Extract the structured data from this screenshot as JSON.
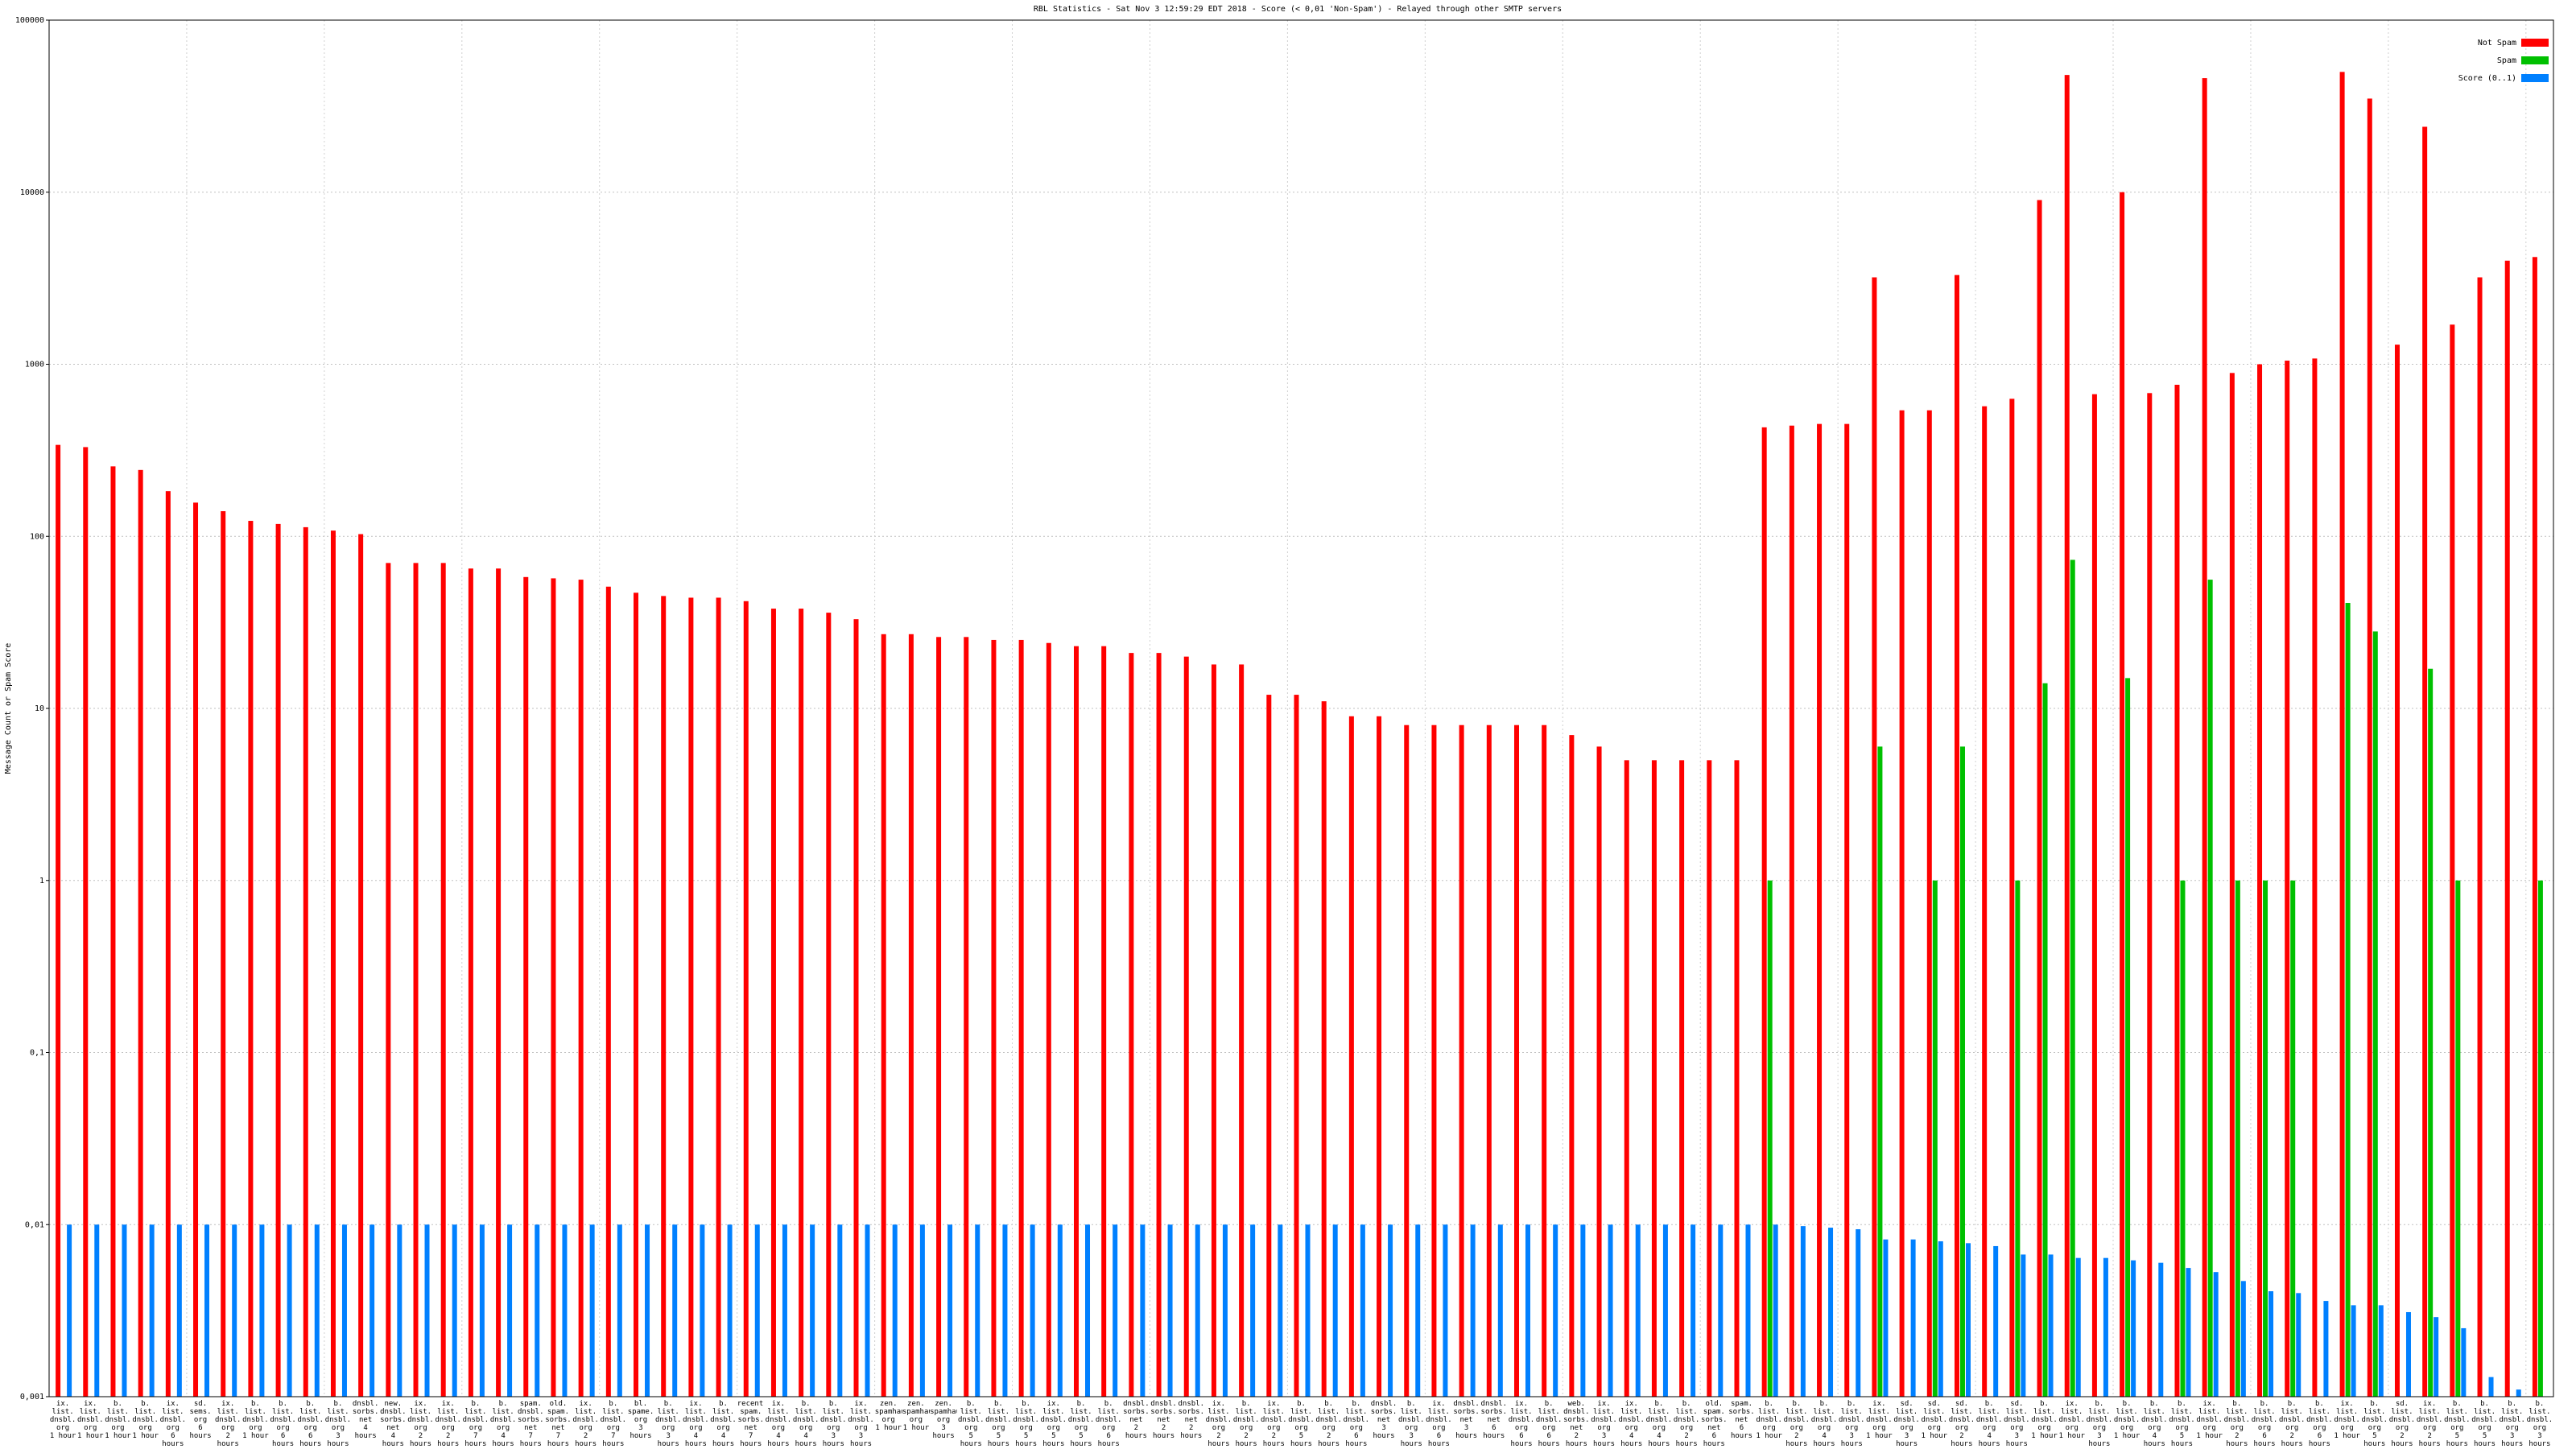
{
  "chart_data": {
    "type": "bar",
    "log_scale": true,
    "grid": true,
    "legend": "top-right",
    "title": "RBL Statistics - Sat Nov  3 12:59:29 EDT 2018 - Score (< 0,01 'Non-Spam') - Relayed through other SMTP servers",
    "y_label": "Message Count or Spam Score",
    "ylim": [
      0.001,
      100000
    ],
    "yticks": [
      {
        "value": 0.001,
        "label": "0,001"
      },
      {
        "value": 0.01,
        "label": "0,01"
      },
      {
        "value": 0.1,
        "label": "0,1"
      },
      1,
      10,
      100,
      1000,
      10000,
      100000
    ],
    "categories": [
      "ix.\nlist.\ndnsbl.\norg\n1 hour",
      "ix.\nlist.\ndnsbl.\norg\n1 hour",
      "b.\nlist.\ndnsbl.\norg\n1 hour",
      "b.\nlist.\ndnsbl.\norg\n1 hour",
      "ix.\nlist.\ndnsbl.\norg\n6 hours",
      "sd.\nsems.\norg\n6 hours",
      "ix.\nlist.\ndnsbl.\norg\n2 hours",
      "b.\nlist.\ndnsbl.\norg\n1 hour",
      "b.\nlist.\ndnsbl.\norg\n6 hours",
      "b.\nlist.\ndnsbl.\norg\n6 hours",
      "b.\nlist.\ndnsbl.\norg\n3 hours",
      "dnsbl.\nsorbs.\nnet\n4 hours",
      "new.\ndnsbl.\nsorbs.\nnet\n4 hours",
      "ix.\nlist.\ndnsbl.\norg\n2 hours",
      "ix.\nlist.\ndnsbl.\norg\n2 hours",
      "b.\nlist.\ndnsbl.\norg\n7 hours",
      "b.\nlist.\ndnsbl.\norg\n4 hours",
      "spam.\ndnsbl.\nsorbs.\nnet\n7 hours",
      "old.\nspam.\nsorbs.\nnet\n7 hours",
      "ix.\nlist.\ndnsbl.\norg\n2 hours",
      "b.\nlist.\ndnsbl.\norg\n7 hours",
      "bl.\nspame.\norg\n3 hours",
      "b.\nlist.\ndnsbl.\norg\n3 hours",
      "ix.\nlist.\ndnsbl.\norg\n4 hours",
      "b.\nlist.\ndnsbl.\norg\n4 hours",
      "recent.\nspam.\nsorbs.\nnet\n7 hours",
      "ix.\nlist.\ndnsbl.\norg\n4 hours",
      "b.\nlist.\ndnsbl.\norg\n4 hours",
      "b.\nlist.\ndnsbl.\norg\n3 hours",
      "ix.\nlist.\ndnsbl.\norg\n3 hours",
      "zen.\nspamhaus.\norg\n1 hour",
      "zen.\nspamhaus.\norg\n1 hour",
      "zen.\nspamhaus.\norg\n3 hours",
      "b.\nlist.\ndnsbl.\norg\n5 hours",
      "b.\nlist.\ndnsbl.\norg\n5 hours",
      "b.\nlist.\ndnsbl.\norg\n5 hours",
      "ix.\nlist.\ndnsbl.\norg\n5 hours",
      "b.\nlist.\ndnsbl.\norg\n5 hours",
      "b.\nlist.\ndnsbl.\norg\n6 hours",
      "dnsbl.\nsorbs.\nnet\n2 hours",
      "dnsbl.\nsorbs.\nnet\n2 hours",
      "dnsbl.\nsorbs.\nnet\n2 hours",
      "ix.\nlist.\ndnsbl.\norg\n2 hours",
      "b.\nlist.\ndnsbl.\norg\n2 hours",
      "ix.\nlist.\ndnsbl.\norg\n2 hours",
      "b.\nlist.\ndnsbl.\norg\n5 hours",
      "b.\nlist.\ndnsbl.\norg\n2 hours",
      "b.\nlist.\ndnsbl.\norg\n6 hours",
      "dnsbl.\nsorbs.\nnet\n3 hours",
      "b.\nlist.\ndnsbl.\norg\n3 hours",
      "ix.\nlist.\ndnsbl.\norg\n6 hours",
      "dnsbl.\nsorbs.\nnet\n3 hours",
      "dnsbl.\nsorbs.\nnet\n6 hours",
      "ix.\nlist.\ndnsbl.\norg\n6 hours",
      "b.\nlist.\ndnsbl.\norg\n6 hours",
      "web.\ndnsbl.\nsorbs.\nnet\n2 hours",
      "ix.\nlist.\ndnsbl.\norg\n3 hours",
      "ix.\nlist.\ndnsbl.\norg\n4 hours",
      "b.\nlist.\ndnsbl.\norg\n4 hours",
      "b.\nlist.\ndnsbl.\norg\n2 hours",
      "old.\nspam.\nsorbs.\nnet\n6 hours",
      "spam.\nsorbs.\nnet\n6 hours",
      "b.\nlist.\ndnsbl.\norg\n1 hour",
      "b.\nlist.\ndnsbl.\norg\n2 hours",
      "b.\nlist.\ndnsbl.\norg\n4 hours",
      "b.\nlist.\ndnsbl.\norg\n3 hours",
      "ix.\nlist.\ndnsbl.\norg\n1 hour",
      "sd.\nlist.\ndnsbl.\norg\n3 hours",
      "sd.\nlist.\ndnsbl.\norg\n1 hour",
      "sd.\nlist.\ndnsbl.\norg\n2 hours",
      "b.\nlist.\ndnsbl.\norg\n4 hours",
      "sd.\nlist.\ndnsbl.\norg\n3 hours",
      "b.\nlist.\ndnsbl.\norg\n1 hour",
      "ix.\nlist.\ndnsbl.\norg\n1 hour",
      "b.\nlist.\ndnsbl.\norg\n3 hours",
      "b.\nlist.\ndnsbl.\norg\n1 hour",
      "b.\nlist.\ndnsbl.\norg\n4 hours",
      "b.\nlist.\ndnsbl.\norg\n5 hours",
      "ix.\nlist.\ndnsbl.\norg\n1 hour",
      "b.\nlist.\ndnsbl.\norg\n2 hours",
      "b.\nlist.\ndnsbl.\norg\n6 hours",
      "b.\nlist.\ndnsbl.\norg\n2 hours",
      "b.\nlist.\ndnsbl.\norg\n6 hours",
      "ix.\nlist.\ndnsbl.\norg\n1 hour",
      "b.\nlist.\ndnsbl.\norg\n5 hours",
      "sd.\nlist.\ndnsbl.\norg\n2 hours",
      "ix.\nlist.\ndnsbl.\norg\n2 hours",
      "b.\nlist.\ndnsbl.\norg\n5 hours",
      "b.\nlist.\ndnsbl.\norg\n5 hours",
      "b.\nlist.\ndnsbl.\norg\n3 hours",
      "b.\nlist.\ndnsbl.\norg\n3 hours"
    ],
    "series": [
      {
        "name": "Not Spam",
        "color": "#ff0000",
        "values": [
          340,
          330,
          255,
          243,
          183,
          157,
          140,
          123,
          118,
          113,
          108,
          103,
          70,
          70,
          70,
          65,
          65,
          58,
          57,
          56,
          51,
          47,
          45,
          44,
          44,
          42,
          38,
          38,
          36,
          33,
          27,
          27,
          26,
          26,
          25,
          25,
          24,
          23,
          23,
          21,
          21,
          20,
          18,
          18,
          12,
          12,
          11,
          9,
          9,
          8,
          8,
          8,
          8,
          8,
          8,
          7,
          6,
          5,
          5,
          5,
          5,
          5,
          430,
          440,
          450,
          450,
          3200,
          540,
          540,
          3300,
          570,
          630,
          9000,
          48000,
          670,
          10000,
          680,
          760,
          46000,
          890,
          1000,
          1050,
          1080,
          50000,
          35000,
          1300,
          24000,
          1700,
          3200,
          4000,
          4200
        ]
      },
      {
        "name": "Spam",
        "color": "#00c000",
        "values": [
          null,
          null,
          null,
          null,
          null,
          null,
          null,
          null,
          null,
          null,
          null,
          null,
          null,
          null,
          null,
          null,
          null,
          null,
          null,
          null,
          null,
          null,
          null,
          null,
          null,
          null,
          null,
          null,
          null,
          null,
          null,
          null,
          null,
          null,
          null,
          null,
          null,
          null,
          null,
          null,
          null,
          null,
          null,
          null,
          null,
          null,
          null,
          null,
          null,
          null,
          null,
          null,
          null,
          null,
          null,
          null,
          null,
          null,
          null,
          null,
          null,
          null,
          1,
          null,
          null,
          null,
          6,
          null,
          1,
          6,
          null,
          1,
          14,
          73,
          null,
          15,
          null,
          1,
          56,
          1,
          1,
          1,
          null,
          41,
          28,
          null,
          17,
          1,
          null,
          null,
          1
        ]
      },
      {
        "name": "Score (0..1)",
        "color": "#0080ff",
        "values": [
          0.01,
          0.01,
          0.01,
          0.01,
          0.01,
          0.01,
          0.01,
          0.01,
          0.01,
          0.01,
          0.01,
          0.01,
          0.01,
          0.01,
          0.01,
          0.01,
          0.01,
          0.01,
          0.01,
          0.01,
          0.01,
          0.01,
          0.01,
          0.01,
          0.01,
          0.01,
          0.01,
          0.01,
          0.01,
          0.01,
          0.01,
          0.01,
          0.01,
          0.01,
          0.01,
          0.01,
          0.01,
          0.01,
          0.01,
          0.01,
          0.01,
          0.01,
          0.01,
          0.01,
          0.01,
          0.01,
          0.01,
          0.01,
          0.01,
          0.01,
          0.01,
          0.01,
          0.01,
          0.01,
          0.01,
          0.01,
          0.01,
          0.01,
          0.01,
          0.01,
          0.01,
          0.01,
          0.01,
          0.0098,
          0.0096,
          0.0094,
          0.0082,
          0.0082,
          0.008,
          0.0078,
          0.0075,
          0.0067,
          0.0067,
          0.0064,
          0.0064,
          0.0062,
          0.006,
          0.0056,
          0.0053,
          0.0047,
          0.0041,
          0.004,
          0.0036,
          0.0034,
          0.0034,
          0.0031,
          0.0029,
          0.0025,
          0.0013,
          0.0011,
          null
        ]
      }
    ]
  }
}
